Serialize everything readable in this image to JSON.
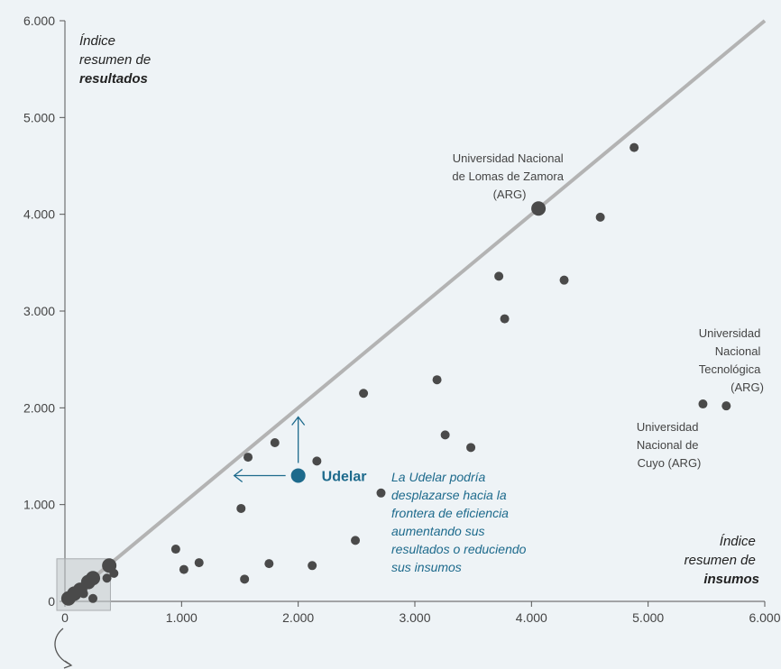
{
  "chart_data": {
    "type": "scatter",
    "title": "",
    "xlabel": [
      "Índice",
      "resumen de",
      "insumos"
    ],
    "ylabel": [
      "Índice",
      "resumen de",
      "resultados"
    ],
    "xlim": [
      0,
      6000
    ],
    "ylim": [
      0,
      6000
    ],
    "x_ticks": [
      "0",
      "1.000",
      "2.000",
      "3.000",
      "4.000",
      "5.000",
      "6.000"
    ],
    "y_ticks": [
      "0",
      "1.000",
      "2.000",
      "3.000",
      "4.000",
      "5.000",
      "6.000"
    ],
    "grid": false,
    "frontier_line": {
      "from": [
        0,
        0
      ],
      "to": [
        6000,
        6000
      ]
    },
    "points": [
      {
        "x": 4060,
        "y": 4060,
        "large": true
      },
      {
        "x": 4880,
        "y": 4690
      },
      {
        "x": 4590,
        "y": 3970
      },
      {
        "x": 3720,
        "y": 3360
      },
      {
        "x": 4280,
        "y": 3320
      },
      {
        "x": 3770,
        "y": 2920
      },
      {
        "x": 2560,
        "y": 2150
      },
      {
        "x": 3190,
        "y": 2290
      },
      {
        "x": 3260,
        "y": 1720
      },
      {
        "x": 3480,
        "y": 1590
      },
      {
        "x": 1570,
        "y": 1490
      },
      {
        "x": 1800,
        "y": 1640
      },
      {
        "x": 2160,
        "y": 1450
      },
      {
        "x": 2710,
        "y": 1120
      },
      {
        "x": 1510,
        "y": 960
      },
      {
        "x": 950,
        "y": 540
      },
      {
        "x": 1150,
        "y": 400
      },
      {
        "x": 1020,
        "y": 330
      },
      {
        "x": 1750,
        "y": 390
      },
      {
        "x": 2120,
        "y": 370
      },
      {
        "x": 2490,
        "y": 630
      },
      {
        "x": 1540,
        "y": 230
      },
      {
        "x": 5470,
        "y": 2040
      },
      {
        "x": 5670,
        "y": 2020
      },
      {
        "x": 380,
        "y": 370,
        "large": true
      },
      {
        "x": 420,
        "y": 290
      },
      {
        "x": 360,
        "y": 240
      },
      {
        "x": 240,
        "y": 240,
        "large": true
      },
      {
        "x": 200,
        "y": 200,
        "large": true
      },
      {
        "x": 130,
        "y": 120,
        "large": true
      },
      {
        "x": 80,
        "y": 80,
        "large": true
      },
      {
        "x": 30,
        "y": 30,
        "large": true
      },
      {
        "x": 160,
        "y": 80
      },
      {
        "x": 240,
        "y": 30
      }
    ],
    "highlight": {
      "label": "Udelar",
      "x": 2000,
      "y": 1300,
      "color": "#1d6a8c"
    },
    "annotations": {
      "lomas": [
        "Universidad Nacional",
        "de Lomas de Zamora",
        "(ARG)"
      ],
      "tecnologica": [
        "Universidad",
        "Nacional",
        "Tecnológica",
        "(ARG)"
      ],
      "cuyo": [
        "Universidad",
        "Nacional de",
        "Cuyo (ARG)"
      ],
      "udelar_note": [
        "La Udelar podría",
        "desplazarse hacia la",
        "frontera de eficiencia",
        "aumentando sus",
        "resultados o reduciendo",
        "sus insumos"
      ]
    },
    "colors": {
      "points": "#4a4a4a",
      "frontier": "#b3b3b3",
      "highlight": "#1d6a8c",
      "zoom_box": "#c4c8cb"
    }
  }
}
